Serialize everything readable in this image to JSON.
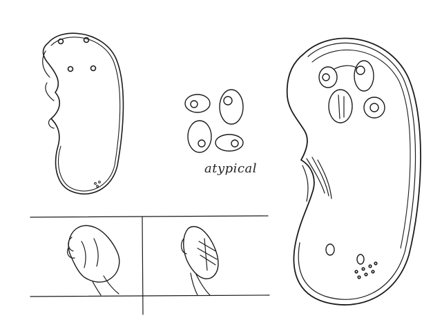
{
  "annotation": {
    "text": "atypical"
  },
  "colors": {
    "ink": "#1a1a1a",
    "paper": "#ffffff"
  }
}
